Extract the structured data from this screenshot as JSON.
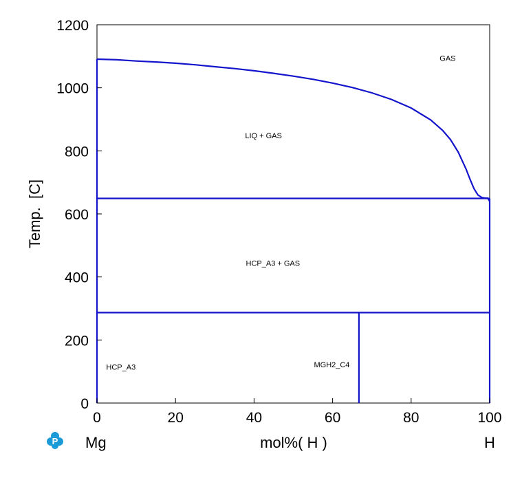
{
  "chart_data": {
    "type": "line",
    "title": "",
    "xlabel": "mol%( H )",
    "ylabel": "Temp.  [C]",
    "x_left_label": "Mg",
    "x_right_label": "H",
    "xlim": [
      0,
      100
    ],
    "ylim": [
      0,
      1200
    ],
    "xticks": [
      "0",
      "20",
      "40",
      "60",
      "80",
      "100"
    ],
    "yticks": [
      "0",
      "200",
      "400",
      "600",
      "800",
      "1000",
      "1200"
    ],
    "grid": false,
    "line_color": "#1414cc",
    "regions": [
      {
        "label": "GAS",
        "x": 89.3,
        "y": 1085
      },
      {
        "label": "LIQ + GAS",
        "x": 42.4,
        "y": 840
      },
      {
        "label": "HCP_A3 + GAS",
        "x": 44.8,
        "y": 435
      },
      {
        "label": "HCP_A3",
        "x": 6.1,
        "y": 106
      },
      {
        "label": "MGH2_C4",
        "x": 59.8,
        "y": 113
      }
    ],
    "series": [
      {
        "values": [
          [
            0,
            1091
          ],
          [
            5,
            1089
          ],
          [
            10,
            1085
          ],
          [
            15,
            1082
          ],
          [
            20,
            1078
          ],
          [
            25,
            1073
          ],
          [
            30,
            1067
          ],
          [
            35,
            1061
          ],
          [
            40,
            1054
          ],
          [
            45,
            1046
          ],
          [
            50,
            1037
          ],
          [
            55,
            1027
          ],
          [
            60,
            1015
          ],
          [
            65,
            1001
          ],
          [
            70,
            984
          ],
          [
            75,
            963
          ],
          [
            80,
            936
          ],
          [
            85,
            898
          ],
          [
            88,
            865
          ],
          [
            90,
            836
          ],
          [
            92,
            796
          ],
          [
            94,
            742
          ],
          [
            95,
            710
          ],
          [
            96,
            680
          ],
          [
            97,
            660
          ],
          [
            98,
            652
          ],
          [
            99,
            650
          ],
          [
            99.5,
            650
          ],
          [
            100,
            640
          ]
        ]
      },
      {
        "values": [
          [
            0,
            0
          ],
          [
            0,
            1091
          ]
        ]
      },
      {
        "values": [
          [
            0,
            649
          ],
          [
            100,
            649
          ]
        ]
      },
      {
        "values": [
          [
            0,
            287
          ],
          [
            100,
            287
          ]
        ]
      },
      {
        "values": [
          [
            66.7,
            0
          ],
          [
            66.7,
            287
          ]
        ]
      },
      {
        "values": [
          [
            100,
            0
          ],
          [
            100,
            649
          ]
        ]
      }
    ]
  },
  "logo": {
    "name": "logo-icon",
    "color": "#1a9ad6"
  }
}
